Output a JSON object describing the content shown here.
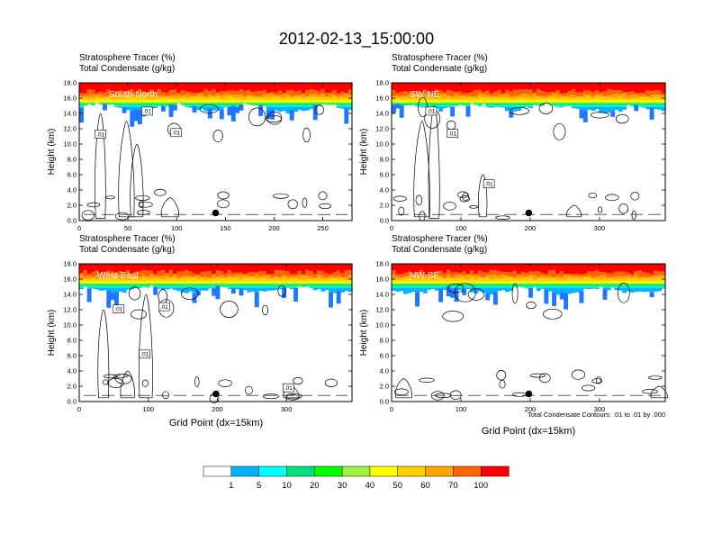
{
  "figure": {
    "title": "2012-02-13_15:00:00",
    "note": "Total Condensate Contours: .01 to .01 by .000",
    "colors": {
      "levels": [
        "#ffffff",
        "#1e78ff",
        "#00b4ff",
        "#00ffff",
        "#00e080",
        "#00ff00",
        "#a0f040",
        "#ffff00",
        "#ffd200",
        "#ffa500",
        "#ff6400",
        "#ff0000"
      ],
      "contour": "#000000",
      "marker": "#000000"
    }
  },
  "colorbar": {
    "labels": [
      "1",
      "5",
      "10",
      "20",
      "30",
      "40",
      "50",
      "60",
      "70",
      "100"
    ]
  },
  "chart_data": [
    {
      "type": "heatmap",
      "panel_label": "South-North",
      "title_line1": "Stratosphere Tracer   (%)",
      "title_line2": "Total Condensate   (g/kg)",
      "ylabel": "Height (km)",
      "xlabel": "",
      "xlim": [
        0,
        280
      ],
      "ylim": [
        0,
        18
      ],
      "xticks": [
        0,
        50,
        100,
        150,
        200,
        250
      ],
      "yticks": [
        "0.0",
        "2.0",
        "4.0",
        "6.0",
        "8.0",
        "10.0",
        "12.0",
        "14.0",
        "16.0",
        "18.0"
      ],
      "contour_labels": [
        ".01",
        ".01",
        ".01"
      ],
      "marker": {
        "x": 140,
        "y": 1.0
      },
      "tracer_base_km": 14.8
    },
    {
      "type": "heatmap",
      "panel_label": "SW-NE",
      "title_line1": "Stratosphere Tracer   (%)",
      "title_line2": "Total Condensate   (g/kg)",
      "ylabel": "Height (km)",
      "xlabel": "",
      "xlim": [
        0,
        395
      ],
      "ylim": [
        0,
        18
      ],
      "xticks": [
        0,
        100,
        200,
        300
      ],
      "yticks": [
        "0.0",
        "2.0",
        "4.0",
        "6.0",
        "8.0",
        "10.0",
        "12.0",
        "14.0",
        "16.0",
        "18.0"
      ],
      "contour_labels": [
        ".01",
        ".01",
        ".01"
      ],
      "marker": {
        "x": 198,
        "y": 1.0
      },
      "tracer_base_km": 14.8
    },
    {
      "type": "heatmap",
      "panel_label": "West-East",
      "title_line1": "Stratosphere Tracer   (%)",
      "title_line2": "Total Condensate   (g/kg)",
      "ylabel": "Height (km)",
      "xlabel": "Grid Point (dx=15km)",
      "xlim": [
        0,
        395
      ],
      "ylim": [
        0,
        18
      ],
      "xticks": [
        0,
        100,
        200,
        300
      ],
      "yticks": [
        "0.0",
        "2.0",
        "4.0",
        "6.0",
        "8.0",
        "10.0",
        "12.0",
        "14.0",
        "16.0",
        "18.0"
      ],
      "contour_labels": [
        ".01",
        ".01",
        ".01",
        ".01"
      ],
      "marker": {
        "x": 198,
        "y": 1.0
      },
      "tracer_base_km": 14.6
    },
    {
      "type": "heatmap",
      "panel_label": "NW-SE",
      "title_line1": "Stratosphere Tracer   (%)",
      "title_line2": "Total Condensate   (g/kg)",
      "ylabel": "Height (km)",
      "xlabel": "Grid Point (dx=15km)",
      "xlim": [
        0,
        395
      ],
      "ylim": [
        0,
        18
      ],
      "xticks": [
        0,
        100,
        200,
        300
      ],
      "yticks": [
        "0.0",
        "2.0",
        "4.0",
        "6.0",
        "8.0",
        "10.0",
        "12.0",
        "14.0",
        "16.0",
        "18.0"
      ],
      "contour_labels": [],
      "marker": {
        "x": 198,
        "y": 1.0
      },
      "tracer_base_km": 14.5
    }
  ]
}
